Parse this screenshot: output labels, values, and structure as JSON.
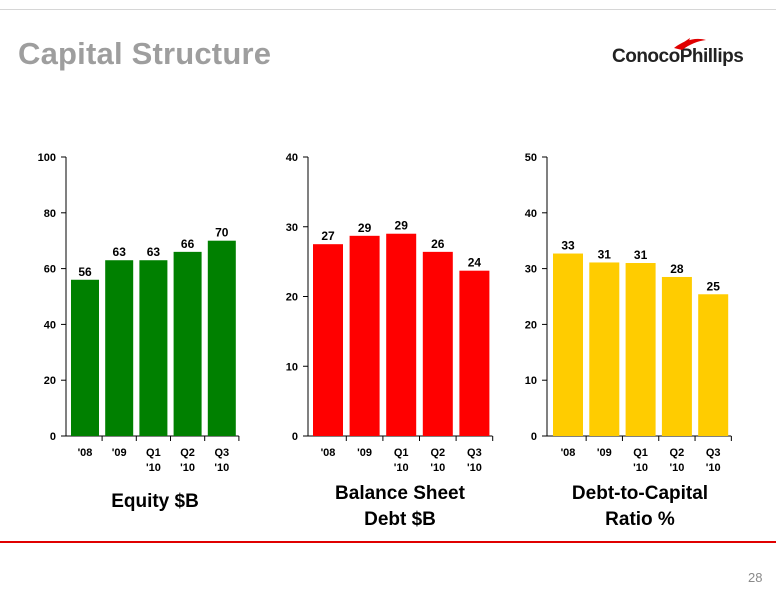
{
  "slide": {
    "title": "Capital Structure",
    "logo_text": "ConocoPhillips",
    "page_number": "28",
    "accent_red": "#e00000"
  },
  "chart_data": [
    {
      "type": "bar",
      "caption_lines": [
        "Equity  $B"
      ],
      "categories": [
        [
          "'08"
        ],
        [
          "'09"
        ],
        [
          "Q1",
          "'10"
        ],
        [
          "Q2",
          "'10"
        ],
        [
          "Q3",
          "'10"
        ]
      ],
      "values": [
        56,
        63,
        63,
        66,
        70
      ],
      "data_labels": [
        "56",
        "63",
        "63",
        "66",
        "70"
      ],
      "ylim": [
        0,
        100
      ],
      "yticks": [
        0,
        20,
        40,
        60,
        80,
        100
      ],
      "color": "#008000",
      "grid": false
    },
    {
      "type": "bar",
      "caption_lines": [
        "Balance Sheet",
        "Debt  $B"
      ],
      "categories": [
        [
          "'08"
        ],
        [
          "'09"
        ],
        [
          "Q1",
          "'10"
        ],
        [
          "Q2",
          "'10"
        ],
        [
          "Q3",
          "'10"
        ]
      ],
      "values": [
        27.5,
        28.7,
        29,
        26.4,
        23.7
      ],
      "data_labels": [
        "27",
        "29",
        "29",
        "26",
        "24"
      ],
      "ylim": [
        0,
        40
      ],
      "yticks": [
        0,
        10,
        20,
        30,
        40
      ],
      "color": "#ff0000",
      "grid": false
    },
    {
      "type": "bar",
      "caption_lines": [
        "Debt-to-Capital",
        "Ratio  %"
      ],
      "categories": [
        [
          "'08"
        ],
        [
          "'09"
        ],
        [
          "Q1",
          "'10"
        ],
        [
          "Q2",
          "'10"
        ],
        [
          "Q3",
          "'10"
        ]
      ],
      "values": [
        32.7,
        31.1,
        31,
        28.5,
        25.4
      ],
      "data_labels": [
        "33",
        "31",
        "31",
        "28",
        "25"
      ],
      "ylim": [
        0,
        50
      ],
      "yticks": [
        0,
        10,
        20,
        30,
        40,
        50
      ],
      "color": "#ffcc00",
      "grid": false
    }
  ]
}
